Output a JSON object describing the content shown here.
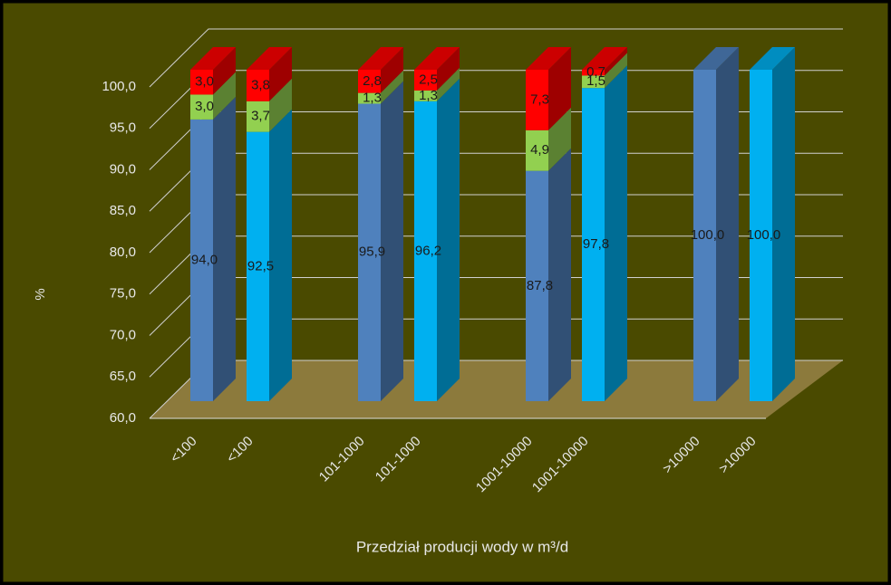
{
  "chart_data": {
    "type": "bar3d_stacked",
    "y_label": "%",
    "x_label": "Przedział producji wody w m³/d",
    "categories": [
      "<100",
      "<100",
      "101-1000",
      "101-1000",
      "1001-10000",
      "1001-10000",
      ">10000",
      ">10000"
    ],
    "series": [
      {
        "colors": [
          "#4f81bd",
          "#00b0f0",
          "#4f81bd",
          "#00b0f0",
          "#4f81bd",
          "#00b0f0",
          "#4f81bd",
          "#00b0f0"
        ],
        "values": [
          94.0,
          92.5,
          95.9,
          96.2,
          87.8,
          97.8,
          100.0,
          100.0
        ],
        "value_labels": [
          "94,0",
          "92,5",
          "95,9",
          "96,2",
          "87,8",
          "97,8",
          "100,0",
          "100,0"
        ]
      },
      {
        "color": "#92d050",
        "values": [
          3.0,
          3.7,
          1.3,
          1.3,
          4.9,
          1.5,
          null,
          null
        ],
        "value_labels": [
          "3,0",
          "3,7",
          "1,3",
          "1,3",
          "4,9",
          "1,5",
          null,
          null
        ]
      },
      {
        "color": "#ff0000",
        "values": [
          3.0,
          3.8,
          2.8,
          2.5,
          7.3,
          0.7,
          null,
          null
        ],
        "value_labels": [
          "3,0",
          "3,8",
          "2,8",
          "2,5",
          "7,3",
          "0,7",
          null,
          null
        ]
      }
    ],
    "ylim": [
      60,
      100
    ],
    "yticks": [
      {
        "value": 60,
        "label": "60,0"
      },
      {
        "value": 65,
        "label": "65,0"
      },
      {
        "value": 70,
        "label": "70,0"
      },
      {
        "value": 75,
        "label": "75,0"
      },
      {
        "value": 80,
        "label": "80,0"
      },
      {
        "value": 85,
        "label": "85,0"
      },
      {
        "value": 90,
        "label": "90,0"
      },
      {
        "value": 95,
        "label": "95,0"
      },
      {
        "value": 100,
        "label": "100,0"
      }
    ],
    "grid": true
  }
}
